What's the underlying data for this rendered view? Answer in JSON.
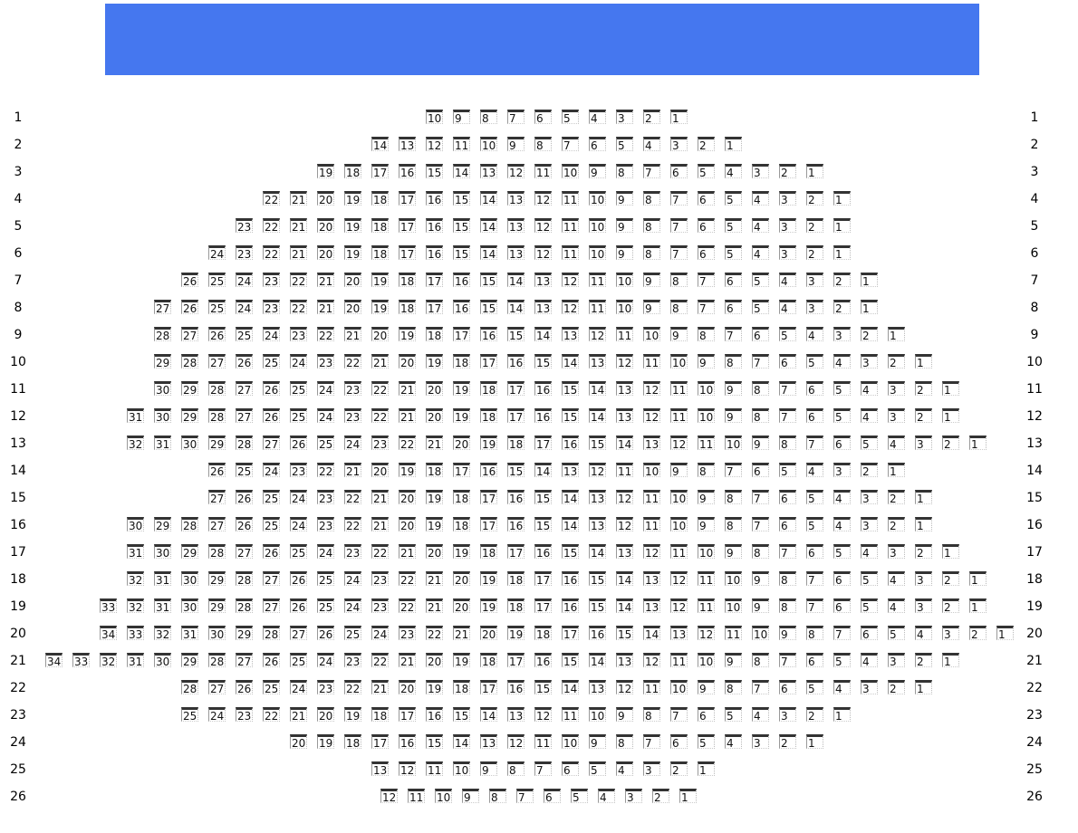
{
  "stage": {
    "color": "#4577EF"
  },
  "rows": [
    {
      "label": "1",
      "seats": [
        10,
        9,
        8,
        7,
        6,
        5,
        4,
        3,
        2,
        1
      ]
    },
    {
      "label": "2",
      "seats": [
        14,
        13,
        12,
        11,
        10,
        9,
        8,
        7,
        6,
        5,
        4,
        3,
        2,
        1
      ]
    },
    {
      "label": "3",
      "seats": [
        19,
        18,
        17,
        16,
        15,
        14,
        13,
        12,
        11,
        10,
        9,
        8,
        7,
        6,
        5,
        4,
        3,
        2,
        1
      ]
    },
    {
      "label": "4",
      "seats": [
        22,
        21,
        20,
        19,
        18,
        17,
        16,
        15,
        14,
        13,
        12,
        11,
        10,
        9,
        8,
        7,
        6,
        5,
        4,
        3,
        2,
        1
      ]
    },
    {
      "label": "5",
      "seats": [
        23,
        22,
        21,
        20,
        19,
        18,
        17,
        16,
        15,
        14,
        13,
        12,
        11,
        10,
        9,
        8,
        7,
        6,
        5,
        4,
        3,
        2,
        1
      ]
    },
    {
      "label": "6",
      "seats": [
        24,
        23,
        22,
        21,
        20,
        19,
        18,
        17,
        16,
        15,
        14,
        13,
        12,
        11,
        10,
        9,
        8,
        7,
        6,
        5,
        4,
        3,
        2,
        1
      ]
    },
    {
      "label": "7",
      "seats": [
        26,
        25,
        24,
        23,
        22,
        21,
        20,
        19,
        18,
        17,
        16,
        15,
        14,
        13,
        12,
        11,
        10,
        9,
        8,
        7,
        6,
        5,
        4,
        3,
        2,
        1
      ]
    },
    {
      "label": "8",
      "seats": [
        27,
        26,
        25,
        24,
        23,
        22,
        21,
        20,
        19,
        18,
        17,
        16,
        15,
        14,
        13,
        12,
        11,
        10,
        9,
        8,
        7,
        6,
        5,
        4,
        3,
        2,
        1
      ]
    },
    {
      "label": "9",
      "seats": [
        28,
        27,
        26,
        25,
        24,
        23,
        22,
        21,
        20,
        19,
        18,
        17,
        16,
        15,
        14,
        13,
        12,
        11,
        10,
        9,
        8,
        7,
        6,
        5,
        4,
        3,
        2,
        1
      ]
    },
    {
      "label": "10",
      "seats": [
        29,
        28,
        27,
        26,
        25,
        24,
        23,
        22,
        21,
        20,
        19,
        18,
        17,
        16,
        15,
        14,
        13,
        12,
        11,
        10,
        9,
        8,
        7,
        6,
        5,
        4,
        3,
        2,
        1
      ]
    },
    {
      "label": "11",
      "seats": [
        30,
        29,
        28,
        27,
        26,
        25,
        24,
        23,
        22,
        21,
        20,
        19,
        18,
        17,
        16,
        15,
        14,
        13,
        12,
        11,
        10,
        9,
        8,
        7,
        6,
        5,
        4,
        3,
        2,
        1
      ]
    },
    {
      "label": "12",
      "seats": [
        31,
        30,
        29,
        28,
        27,
        26,
        25,
        24,
        23,
        22,
        21,
        20,
        19,
        18,
        17,
        16,
        15,
        14,
        13,
        12,
        11,
        10,
        9,
        8,
        7,
        6,
        5,
        4,
        3,
        2,
        1
      ]
    },
    {
      "label": "13",
      "seats": [
        32,
        31,
        30,
        29,
        28,
        27,
        26,
        25,
        24,
        23,
        22,
        21,
        20,
        19,
        18,
        17,
        16,
        15,
        14,
        13,
        12,
        11,
        10,
        9,
        8,
        7,
        6,
        5,
        4,
        3,
        2,
        1
      ]
    },
    {
      "label": "14",
      "seats": [
        26,
        25,
        24,
        23,
        22,
        21,
        20,
        19,
        18,
        17,
        16,
        15,
        14,
        13,
        12,
        11,
        10,
        9,
        8,
        7,
        6,
        5,
        4,
        3,
        2,
        1
      ]
    },
    {
      "label": "15",
      "seats": [
        27,
        26,
        25,
        24,
        23,
        22,
        21,
        20,
        19,
        18,
        17,
        16,
        15,
        14,
        13,
        12,
        11,
        10,
        9,
        8,
        7,
        6,
        5,
        4,
        3,
        2,
        1
      ]
    },
    {
      "label": "16",
      "seats": [
        30,
        29,
        28,
        27,
        26,
        25,
        24,
        23,
        22,
        21,
        20,
        19,
        18,
        17,
        16,
        15,
        14,
        13,
        12,
        11,
        10,
        9,
        8,
        7,
        6,
        5,
        4,
        3,
        2,
        1
      ]
    },
    {
      "label": "17",
      "seats": [
        31,
        30,
        29,
        28,
        27,
        26,
        25,
        24,
        23,
        22,
        21,
        20,
        19,
        18,
        17,
        16,
        15,
        14,
        13,
        12,
        11,
        10,
        9,
        8,
        7,
        6,
        5,
        4,
        3,
        2,
        1
      ]
    },
    {
      "label": "18",
      "seats": [
        32,
        31,
        30,
        29,
        28,
        27,
        26,
        25,
        24,
        23,
        22,
        21,
        20,
        19,
        18,
        17,
        16,
        15,
        14,
        13,
        12,
        11,
        10,
        9,
        8,
        7,
        6,
        5,
        4,
        3,
        2,
        1
      ]
    },
    {
      "label": "19",
      "seats": [
        33,
        32,
        31,
        30,
        29,
        28,
        27,
        26,
        25,
        24,
        23,
        22,
        21,
        20,
        19,
        18,
        17,
        16,
        15,
        14,
        13,
        12,
        11,
        10,
        9,
        8,
        7,
        6,
        5,
        4,
        3,
        2,
        1
      ]
    },
    {
      "label": "20",
      "seats": [
        34,
        33,
        32,
        31,
        30,
        29,
        28,
        27,
        26,
        25,
        24,
        23,
        22,
        21,
        20,
        19,
        18,
        17,
        16,
        15,
        14,
        13,
        12,
        11,
        10,
        9,
        8,
        7,
        6,
        5,
        4,
        3,
        2,
        1
      ]
    },
    {
      "label": "21",
      "seats": [
        34,
        33,
        32,
        31,
        30,
        29,
        28,
        27,
        26,
        25,
        24,
        23,
        22,
        21,
        20,
        19,
        18,
        17,
        16,
        15,
        14,
        13,
        12,
        11,
        10,
        9,
        8,
        7,
        6,
        5,
        4,
        3,
        2,
        1
      ]
    },
    {
      "label": "22",
      "seats": [
        28,
        27,
        26,
        25,
        24,
        23,
        22,
        21,
        20,
        19,
        18,
        17,
        16,
        15,
        14,
        13,
        12,
        11,
        10,
        9,
        8,
        7,
        6,
        5,
        4,
        3,
        2,
        1
      ]
    },
    {
      "label": "23",
      "seats": [
        25,
        24,
        23,
        22,
        21,
        20,
        19,
        18,
        17,
        16,
        15,
        14,
        13,
        12,
        11,
        10,
        9,
        8,
        7,
        6,
        5,
        4,
        3,
        2,
        1
      ]
    },
    {
      "label": "24",
      "seats": [
        20,
        19,
        18,
        17,
        16,
        15,
        14,
        13,
        12,
        11,
        10,
        9,
        8,
        7,
        6,
        5,
        4,
        3,
        2,
        1
      ]
    },
    {
      "label": "25",
      "seats": [
        13,
        12,
        11,
        10,
        9,
        8,
        7,
        6,
        5,
        4,
        3,
        2,
        1
      ]
    },
    {
      "label": "26",
      "seats": [
        12,
        11,
        10,
        9,
        8,
        7,
        6,
        5,
        4,
        3,
        2,
        1
      ]
    }
  ]
}
